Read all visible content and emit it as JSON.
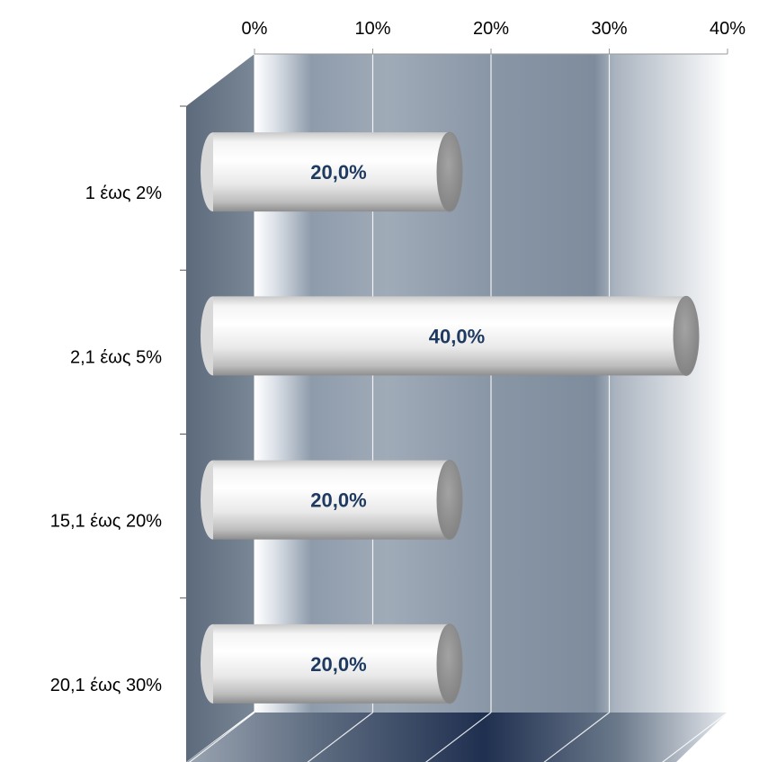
{
  "chart_data": {
    "type": "bar",
    "orientation": "horizontal",
    "style": "3d-cylinder",
    "categories": [
      "1 έως 2%",
      "2,1 έως 5%",
      "15,1 έως 20%",
      "20,1 έως 30%"
    ],
    "values": [
      20.0,
      40.0,
      20.0,
      20.0
    ],
    "data_labels": [
      "20,0%",
      "40,0%",
      "20,0%",
      "20,0%"
    ],
    "x_ticks": [
      "0%",
      "10%",
      "20%",
      "30%",
      "40%"
    ],
    "xlim": [
      0,
      40
    ],
    "x_axis_position": "top",
    "grid": true,
    "legend": "none",
    "colors": {
      "bar_light": "#ffffff",
      "bar_shade": "#8a8a8a",
      "bar_cap": "#8c8c8c",
      "wall_dark": "#6f7f92",
      "wall_mid": "#9aa6b3",
      "floor_dark": "#1f2f4f",
      "label": "#1f3a60"
    }
  }
}
